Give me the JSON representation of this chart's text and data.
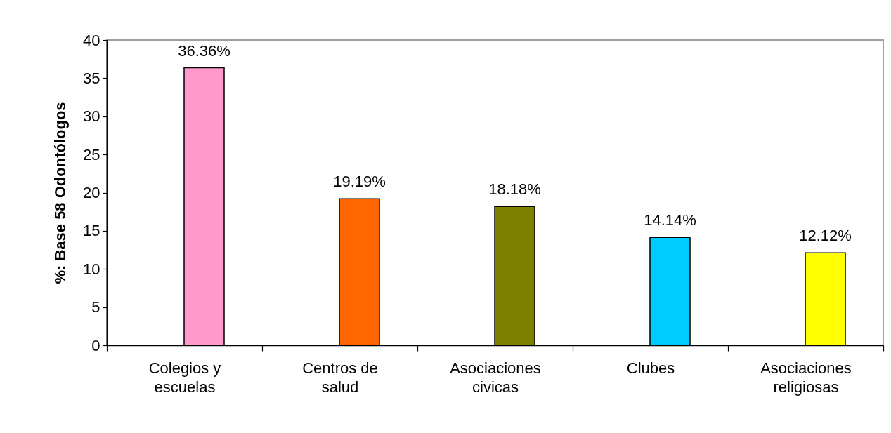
{
  "chart_data": {
    "type": "bar",
    "ylabel": "%: Base 58 Odontólogos",
    "categories": [
      "Colegios y escuelas",
      "Centros de salud",
      "Asociaciones civicas",
      "Clubes",
      "Asociaciones religiosas"
    ],
    "values": [
      36.36,
      19.19,
      18.18,
      14.14,
      12.12
    ],
    "colors": [
      "#ff99cc",
      "#ff6600",
      "#808000",
      "#00ccff",
      "#ffff00"
    ],
    "value_labels": [
      "36.36%",
      "19.19%",
      "18.18%",
      "14.14%",
      "12.12%"
    ],
    "ylim": [
      0,
      40
    ],
    "yticks": [
      0,
      5,
      10,
      15,
      20,
      25,
      30,
      35,
      40
    ],
    "grid": false
  }
}
